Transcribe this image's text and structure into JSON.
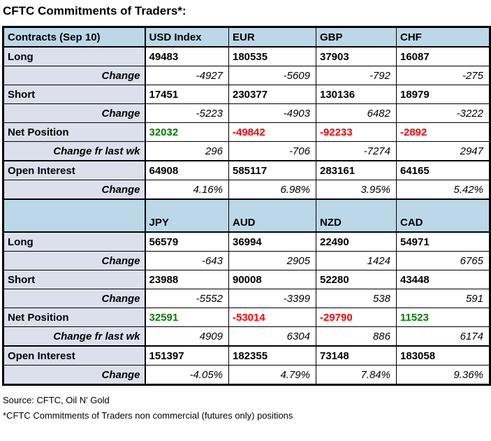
{
  "title": "CFTC Commitments of Traders*:",
  "colors": {
    "header_fill": "#bcd8e8",
    "label_fill": "#dce0ec",
    "positive": "#008000",
    "negative": "#ff0000",
    "border": "#000000"
  },
  "chart_data": [
    {
      "type": "table",
      "title": "CFTC Commitments of Traders (majors, first panel)",
      "columns": [
        "Contracts (Sep 10)",
        "USD Index",
        "EUR",
        "GBP",
        "CHF"
      ],
      "rows": [
        {
          "label": "Long",
          "type": "main",
          "values": [
            "49483",
            "180535",
            "37903",
            "16087"
          ]
        },
        {
          "label": "Change",
          "type": "change",
          "values": [
            "-4927",
            "-5609",
            "-792",
            "-275"
          ]
        },
        {
          "label": "Short",
          "type": "main",
          "values": [
            "17451",
            "230377",
            "130136",
            "18979"
          ]
        },
        {
          "label": "Change",
          "type": "change",
          "values": [
            "-5223",
            "-4903",
            "6482",
            "-3222"
          ]
        },
        {
          "label": "Net Position",
          "type": "main",
          "values": [
            "32032",
            "-49842",
            "-92233",
            "-2892"
          ],
          "value_colors": [
            "positive",
            "negative",
            "negative",
            "negative"
          ]
        },
        {
          "label": "Change fr last wk",
          "type": "change",
          "values": [
            "296",
            "-706",
            "-7274",
            "2947"
          ]
        },
        {
          "label": "Open Interest",
          "type": "main",
          "thick_top": true,
          "values": [
            "64908",
            "585117",
            "283161",
            "64165"
          ]
        },
        {
          "label": "Change",
          "type": "change",
          "values": [
            "4.16%",
            "6.98%",
            "3.95%",
            "5.42%"
          ]
        }
      ]
    },
    {
      "type": "table",
      "title": "CFTC Commitments of Traders (majors, second panel)",
      "columns": [
        "",
        "JPY",
        "AUD",
        "NZD",
        "CAD"
      ],
      "rows": [
        {
          "label": "Long",
          "type": "main",
          "values": [
            "56579",
            "36994",
            "22490",
            "54971"
          ]
        },
        {
          "label": "Change",
          "type": "change",
          "values": [
            "-643",
            "2905",
            "1424",
            "6765"
          ]
        },
        {
          "label": "Short",
          "type": "main",
          "values": [
            "23988",
            "90008",
            "52280",
            "43448"
          ]
        },
        {
          "label": "Change",
          "type": "change",
          "values": [
            "-5552",
            "-3399",
            "538",
            "591"
          ]
        },
        {
          "label": "Net Position",
          "type": "main",
          "values": [
            "32591",
            "-53014",
            "-29790",
            "11523"
          ],
          "value_colors": [
            "positive",
            "negative",
            "negative",
            "positive"
          ]
        },
        {
          "label": "Change fr last wk",
          "type": "change",
          "values": [
            "4909",
            "6304",
            "886",
            "6174"
          ]
        },
        {
          "label": "Open Interest",
          "type": "main",
          "thick_top": true,
          "values": [
            "151397",
            "182355",
            "73148",
            "183058"
          ]
        },
        {
          "label": "Change",
          "type": "change",
          "values": [
            "-4.05%",
            "4.79%",
            "7.84%",
            "9.36%"
          ]
        }
      ]
    }
  ],
  "footer": {
    "source": "Source: CFTC, Oil N' Gold",
    "note": "*CFTC Commitments of Traders non commercial (futures only) positions"
  }
}
